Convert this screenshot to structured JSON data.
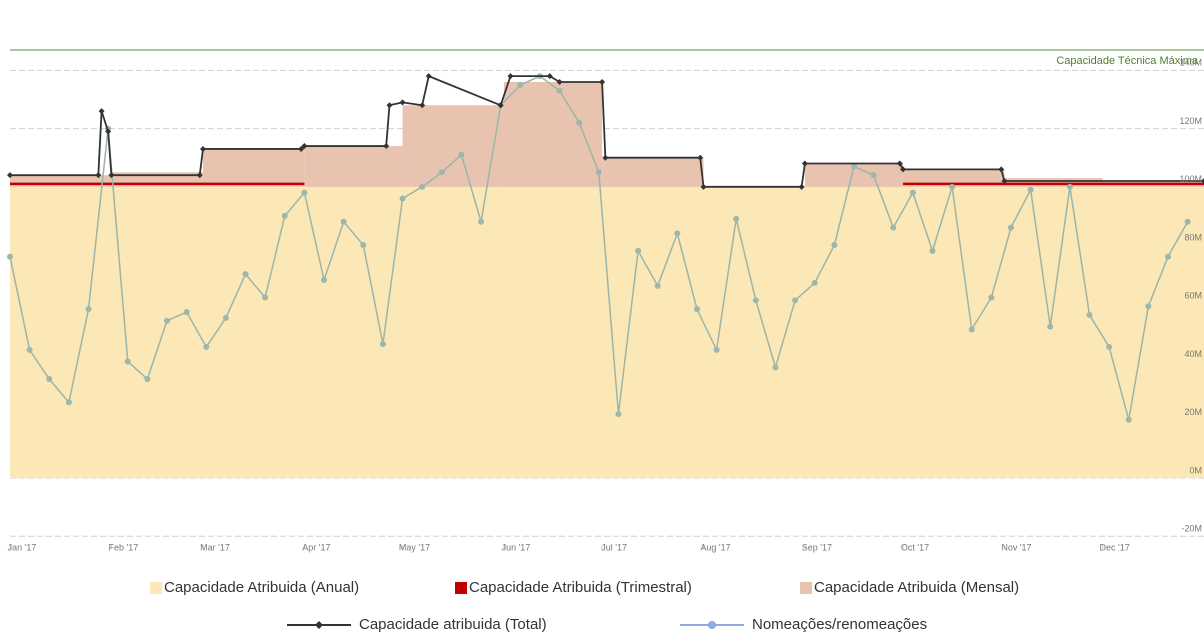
{
  "chart_data": {
    "type": "area",
    "annotation": {
      "label": "Capacidade Técnica Máxima",
      "value": 147,
      "color": "#5a8a3a"
    },
    "xlim": [
      0,
      365
    ],
    "xticks": [
      {
        "value": 0,
        "label": "Jan '17"
      },
      {
        "value": 31,
        "label": "Feb '17"
      },
      {
        "value": 59,
        "label": "Mar '17"
      },
      {
        "value": 90,
        "label": "Apr '17"
      },
      {
        "value": 120,
        "label": "May '17"
      },
      {
        "value": 151,
        "label": "Jun '17"
      },
      {
        "value": 181,
        "label": "Jul '17"
      },
      {
        "value": 212,
        "label": "Aug '17"
      },
      {
        "value": 243,
        "label": "Sep '17"
      },
      {
        "value": 273,
        "label": "Oct '17"
      },
      {
        "value": 304,
        "label": "Nov '17"
      },
      {
        "value": 334,
        "label": "Dec '17"
      }
    ],
    "ylim": [
      -23,
      159
    ],
    "yticks": [
      {
        "value": -20,
        "label": "-20M"
      },
      {
        "value": 0,
        "label": "0M"
      },
      {
        "value": 20,
        "label": "20M"
      },
      {
        "value": 40,
        "label": "40M"
      },
      {
        "value": 60,
        "label": "60M"
      },
      {
        "value": 80,
        "label": "80M"
      },
      {
        "value": 100,
        "label": "100M"
      },
      {
        "value": 120,
        "label": "120M"
      },
      {
        "value": 140,
        "label": "140M"
      }
    ],
    "grid": true,
    "legend": "bottom",
    "series": [
      {
        "name": "Capacidade Atribuida (Anual)",
        "color": "#fbe8b6",
        "kind": "area",
        "x": [
          0,
          365
        ],
        "values": [
          100,
          100
        ]
      },
      {
        "name": "Capacidade Atribuida (Trimestral)",
        "color": "#c00000",
        "kind": "step-line",
        "x": [
          0,
          90,
          181,
          273
        ],
        "values": [
          101,
          null,
          null,
          101
        ]
      },
      {
        "name": "Capacidade Atribuida (Mensal)",
        "color": "#e8c4b0",
        "kind": "step-area",
        "x": [
          0,
          31,
          59,
          90,
          120,
          151,
          181,
          212,
          243,
          273,
          304,
          334
        ],
        "values": [
          104,
          105,
          113,
          114,
          128,
          136,
          110,
          100,
          108,
          106,
          103,
          102
        ]
      },
      {
        "name": "Capacidade atribuida (Total)",
        "color": "#333333",
        "kind": "line",
        "x": [
          0,
          27,
          28,
          30,
          31,
          58,
          59,
          89,
          90,
          115,
          116,
          120,
          126,
          128,
          150,
          153,
          165,
          168,
          181,
          182,
          211,
          212,
          242,
          243,
          272,
          273,
          303,
          304,
          365
        ],
        "values": [
          104,
          104,
          126,
          119,
          104,
          104,
          113,
          113,
          114,
          114,
          128,
          129,
          128,
          138,
          128,
          138,
          138,
          136,
          136,
          110,
          110,
          100,
          100,
          108,
          108,
          106,
          106,
          102,
          102
        ]
      },
      {
        "name": "Nomeações/renomeações",
        "color": "#8faadc",
        "kind": "line",
        "x": [
          0,
          6,
          12,
          18,
          24,
          30,
          36,
          42,
          48,
          54,
          60,
          66,
          72,
          78,
          84,
          90,
          96,
          102,
          108,
          114,
          120,
          126,
          132,
          138,
          144,
          150,
          156,
          162,
          168,
          174,
          180,
          186,
          192,
          198,
          204,
          210,
          216,
          222,
          228,
          234,
          240,
          246,
          252,
          258,
          264,
          270,
          276,
          282,
          288,
          294,
          300,
          306,
          312,
          318,
          324,
          330,
          336,
          342,
          348,
          354,
          360
        ],
        "values": [
          76,
          44,
          34,
          26,
          58,
          120,
          40,
          34,
          54,
          57,
          45,
          55,
          70,
          62,
          90,
          98,
          68,
          88,
          80,
          46,
          96,
          100,
          105,
          111,
          88,
          128,
          135,
          138,
          133,
          122,
          105,
          22,
          78,
          66,
          84,
          58,
          44,
          89,
          61,
          38,
          61,
          67,
          80,
          107,
          104,
          86,
          98,
          78,
          100,
          51,
          62,
          86,
          99,
          52,
          100,
          56,
          45,
          20,
          59,
          76,
          88
        ]
      }
    ]
  }
}
